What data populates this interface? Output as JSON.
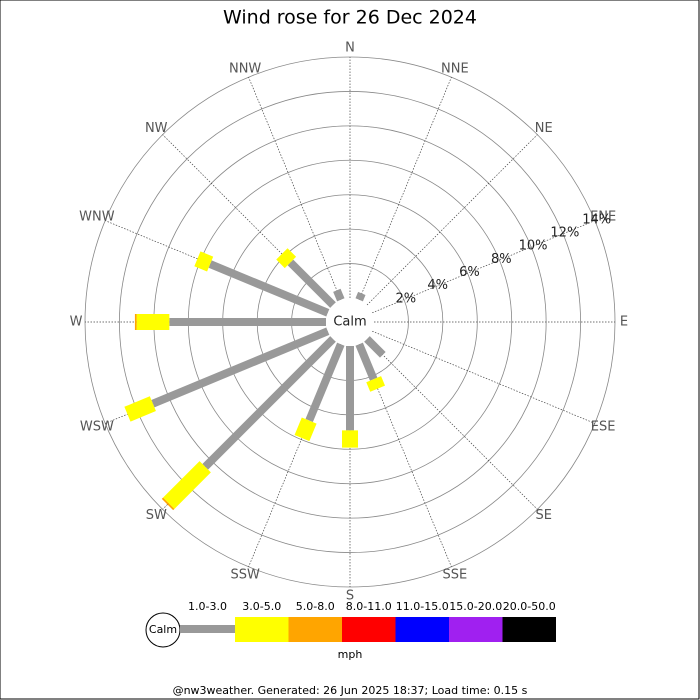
{
  "chart_data": {
    "type": "wind_rose",
    "title": "Wind rose for 26 Dec 2024",
    "directions": [
      "N",
      "NNE",
      "NE",
      "ENE",
      "E",
      "ESE",
      "SE",
      "SSE",
      "S",
      "SSW",
      "SW",
      "WSW",
      "W",
      "WNW",
      "NW",
      "NNW"
    ],
    "calm_label": "Calm",
    "rlim": [
      0,
      14
    ],
    "rticks": [
      {
        "value": 2,
        "label": "2%"
      },
      {
        "value": 4,
        "label": "4%"
      },
      {
        "value": 6,
        "label": "6%"
      },
      {
        "value": 8,
        "label": "8%"
      },
      {
        "value": 10,
        "label": "10%"
      },
      {
        "value": 12,
        "label": "12%"
      },
      {
        "value": 14,
        "label": "14%"
      }
    ],
    "series": [
      {
        "name": "1.0-3.0",
        "color": "#999999",
        "values": [
          0,
          0.4,
          0,
          0,
          0,
          0,
          1.3,
          2.2,
          4.9,
          4.8,
          10.5,
          11.0,
          9.1,
          7.4,
          3.5,
          0.6
        ]
      },
      {
        "name": "3.0-5.0",
        "color": "#ffff00",
        "values": [
          0,
          0,
          0,
          0,
          0,
          0,
          0,
          0.6,
          1.0,
          1.1,
          3.0,
          1.6,
          1.9,
          0.8,
          0.7,
          0
        ]
      },
      {
        "name": "5.0-8.0",
        "color": "#ffa500",
        "values": [
          0,
          0,
          0,
          0,
          0,
          0,
          0,
          0,
          0,
          0,
          0.1,
          0,
          0.1,
          0,
          0,
          0
        ]
      },
      {
        "name": "8.0-11.0",
        "color": "#ff0000",
        "values": [
          0,
          0,
          0,
          0,
          0,
          0,
          0,
          0,
          0,
          0,
          0,
          0,
          0,
          0,
          0,
          0
        ]
      },
      {
        "name": "11.0-15.0",
        "color": "#0000ff",
        "values": [
          0,
          0,
          0,
          0,
          0,
          0,
          0,
          0,
          0,
          0,
          0,
          0,
          0,
          0,
          0,
          0
        ]
      },
      {
        "name": "15.0-20.0",
        "color": "#a020f0",
        "values": [
          0,
          0,
          0,
          0,
          0,
          0,
          0,
          0,
          0,
          0,
          0,
          0,
          0,
          0,
          0,
          0
        ]
      },
      {
        "name": "20.0-50.0",
        "color": "#000000",
        "values": [
          0,
          0,
          0,
          0,
          0,
          0,
          0,
          0,
          0,
          0,
          0,
          0,
          0,
          0,
          0,
          0
        ]
      }
    ],
    "unit": "mph",
    "footer": "@nw3weather. Generated: 26 Jun 2025 18:37; Load time: 0.15 s"
  }
}
